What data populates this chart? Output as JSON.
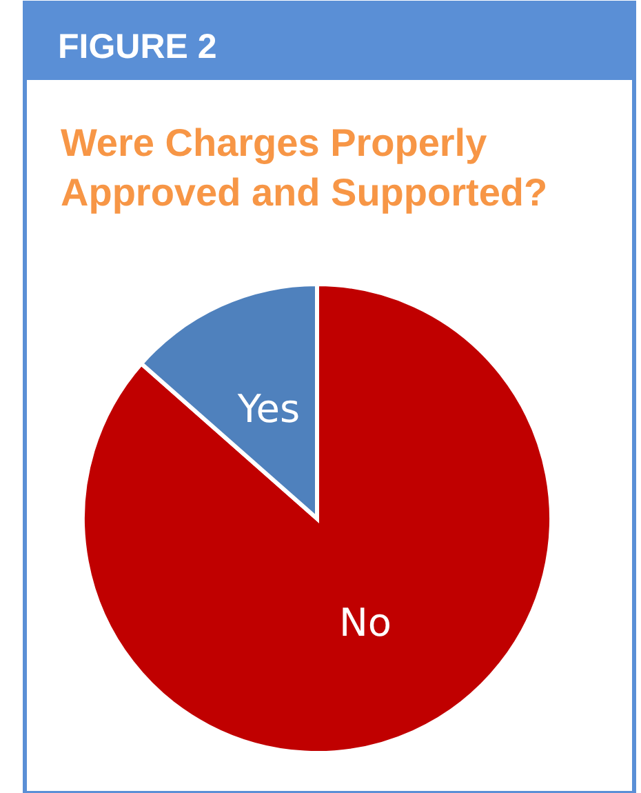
{
  "chart_data": {
    "type": "pie",
    "title": "Were Charges Properly Approved and Supported?",
    "annotations": [
      "FIGURE 2"
    ],
    "categories": [
      "No",
      "Yes"
    ],
    "values": [
      86.5,
      13.5
    ],
    "colors": [
      "#c00000",
      "#4f81bd"
    ],
    "legend": false
  }
}
